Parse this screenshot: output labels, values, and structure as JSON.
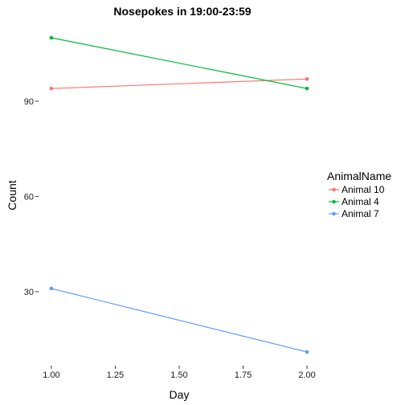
{
  "chart_data": {
    "type": "line",
    "title": "Nosepokes in 19:00-23:59",
    "xlabel": "Day",
    "ylabel": "Count",
    "x": [
      1.0,
      2.0
    ],
    "xlim": [
      0.95,
      2.05
    ],
    "ylim": [
      6.7,
      114.3
    ],
    "x_ticks": [
      1.0,
      1.25,
      1.5,
      1.75,
      2.0
    ],
    "x_tick_labels": [
      "1.00",
      "1.25",
      "1.50",
      "1.75",
      "2.00"
    ],
    "y_ticks": [
      30,
      60,
      90
    ],
    "y_tick_labels": [
      "30",
      "60",
      "90"
    ],
    "grid": false,
    "legend": {
      "title": "AnimalName",
      "placement": "right"
    },
    "series": [
      {
        "name": "Animal 10",
        "color": "#F8766D",
        "values": [
          94,
          97
        ]
      },
      {
        "name": "Animal 4",
        "color": "#00BA38",
        "values": [
          110,
          94
        ]
      },
      {
        "name": "Animal 7",
        "color": "#619CFF",
        "values": [
          31,
          11
        ]
      }
    ]
  }
}
